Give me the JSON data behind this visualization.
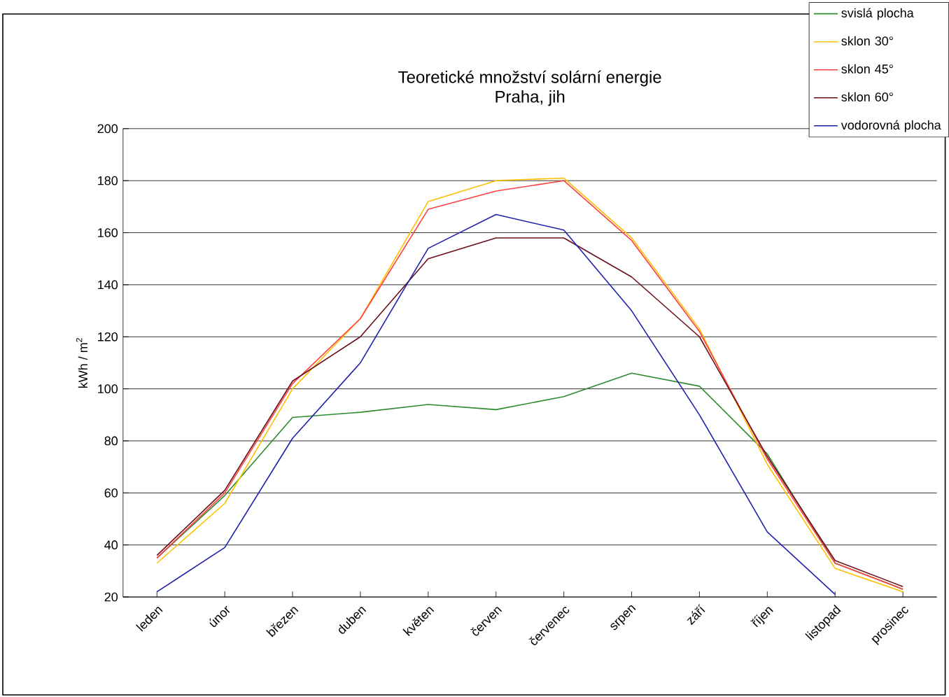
{
  "chart_data": {
    "type": "line",
    "title": "Teoretické množství solární energie",
    "subtitle": "Praha, jih",
    "ylabel": "kWh / m$^{2}$",
    "categories": [
      "leden",
      "únor",
      "březen",
      "duben",
      "květen",
      "červen",
      "červenec",
      "srpen",
      "září",
      "říjen",
      "listopad",
      "prosinec"
    ],
    "series": [
      {
        "name": "svislá plocha",
        "color": "#2e8b2e",
        "values": [
          35,
          59,
          89,
          91,
          94,
          92,
          97,
          106,
          101,
          75,
          33,
          23
        ]
      },
      {
        "name": "sklon 30°",
        "color": "#ffc000",
        "values": [
          33,
          56,
          100,
          127,
          172,
          180,
          181,
          158,
          123,
          71,
          31,
          22
        ]
      },
      {
        "name": "sklon 45°",
        "color": "#ff4040",
        "values": [
          35,
          60,
          102,
          127,
          169,
          176,
          180,
          157,
          122,
          73,
          33,
          23
        ]
      },
      {
        "name": "sklon 60°",
        "color": "#6b0f1a",
        "values": [
          36,
          61,
          103,
          120,
          150,
          158,
          158,
          143,
          120,
          74,
          34,
          24
        ]
      },
      {
        "name": "vodorovná plocha",
        "color": "#2020b0",
        "values": [
          22,
          39,
          81,
          110,
          154,
          167,
          161,
          130,
          90,
          45,
          21,
          null
        ]
      }
    ],
    "ylim": [
      20,
      200
    ],
    "yticks": [
      20,
      40,
      60,
      80,
      100,
      120,
      140,
      160,
      180,
      200
    ],
    "grid": "y",
    "legend": "top right",
    "marker": "none",
    "line_style": "solid"
  }
}
